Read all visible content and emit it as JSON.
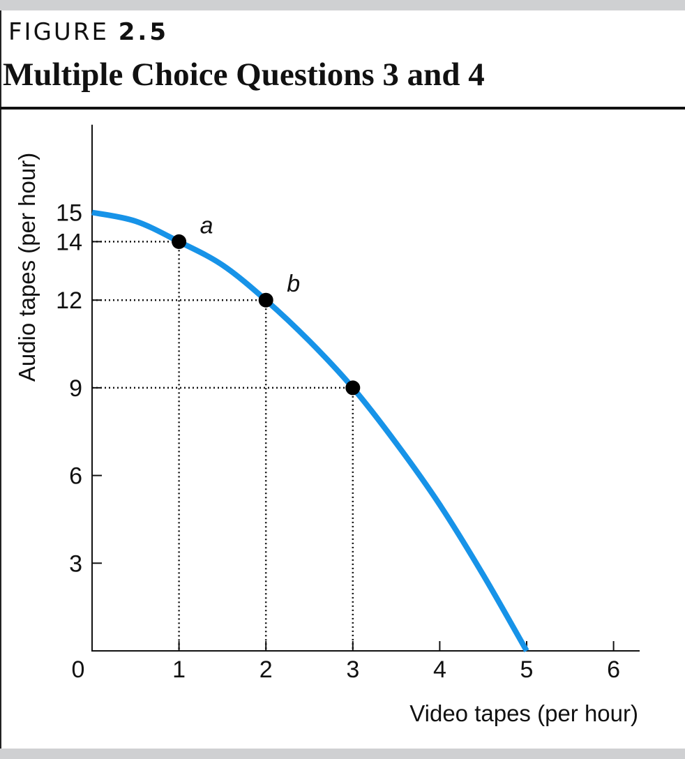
{
  "figure": {
    "label_prefix": "FIGURE",
    "label_number": "2.5",
    "title": "Multiple Choice Questions 3 and 4"
  },
  "colors": {
    "curve": "#1793e8",
    "axis": "#111111",
    "band": "#cfd0d2"
  },
  "chart_data": {
    "type": "line",
    "title": "Multiple Choice Questions 3 and 4",
    "xlabel": "Video tapes (per hour)",
    "ylabel": "Audio tapes (per hour)",
    "xlim": [
      0,
      6.3
    ],
    "ylim": [
      0,
      18
    ],
    "x_ticks": [
      1,
      2,
      3,
      4,
      5,
      6
    ],
    "y_ticks": [
      3,
      6,
      9,
      12,
      14,
      15
    ],
    "origin_label": "0",
    "grid": false,
    "legend": "none",
    "series": [
      {
        "x": [
          0,
          0.5,
          1,
          1.5,
          2,
          2.5,
          3,
          3.5,
          4,
          4.5,
          5
        ],
        "y": [
          15,
          14.7,
          14,
          13.2,
          12,
          10.6,
          9,
          7.1,
          5,
          2.6,
          0
        ]
      }
    ],
    "points": [
      {
        "x": 1,
        "y": 14,
        "label": "a"
      },
      {
        "x": 2,
        "y": 12,
        "label": "b"
      },
      {
        "x": 3,
        "y": 9,
        "label": ""
      }
    ]
  }
}
